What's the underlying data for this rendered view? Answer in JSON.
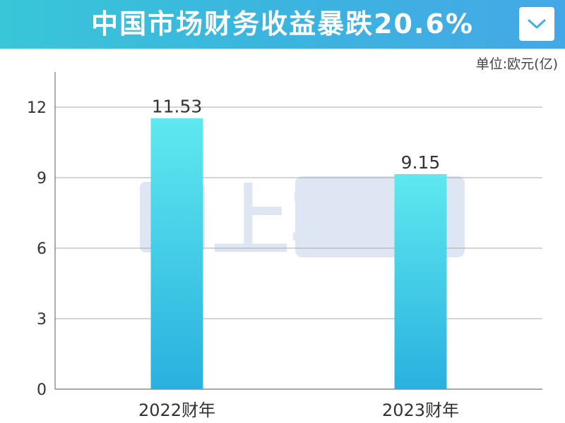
{
  "header": {
    "title": "中国市场财务收益暴跌20.6%",
    "dropdown_icon": "chevron-down-icon"
  },
  "unit_label": "单位:欧元(亿)",
  "watermark": {
    "text": "上车"
  },
  "colors": {
    "header_start": "#39c6d8",
    "header_end": "#45a8e6",
    "bar_top": "#5ee9f0",
    "bar_bottom": "#2ab0de",
    "watermark": "#dde6f2"
  },
  "chart_data": {
    "type": "bar",
    "title": "中国市场财务收益暴跌20.6%",
    "categories": [
      "2022财年",
      "2023财年"
    ],
    "values": [
      11.53,
      9.15
    ],
    "value_labels": [
      "11.53",
      "9.15"
    ],
    "ylim": [
      0,
      13.5
    ],
    "yticks": [
      0,
      3,
      6,
      9,
      12
    ],
    "xlabel": "",
    "ylabel": "单位:欧元(亿)",
    "grid": true,
    "legend": "none"
  }
}
